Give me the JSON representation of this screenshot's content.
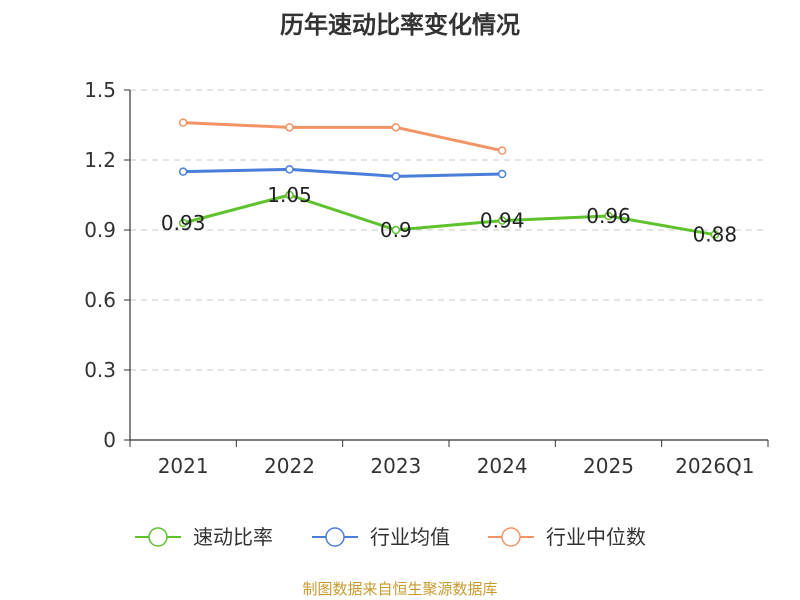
{
  "chart_data": {
    "type": "line",
    "title": "历年速动比率变化情况",
    "categories": [
      "2021",
      "2022",
      "2023",
      "2024",
      "2025",
      "2026Q1"
    ],
    "y_ticks": [
      "0",
      "0.3",
      "0.6",
      "0.9",
      "1.2",
      "1.5"
    ],
    "ylim": [
      0,
      1.5
    ],
    "grid": true,
    "legend_position": "bottom",
    "series": [
      {
        "name": "速动比率",
        "color": "#5ec22d",
        "values": [
          0.93,
          1.05,
          0.9,
          0.94,
          0.96,
          0.88
        ],
        "labels": [
          "0.93",
          "1.05",
          "0.9",
          "0.94",
          "0.96",
          "0.88"
        ]
      },
      {
        "name": "行业均值",
        "color": "#4a7fd9",
        "values": [
          1.15,
          1.16,
          1.13,
          1.14,
          null,
          null
        ]
      },
      {
        "name": "行业中位数",
        "color": "#f29466",
        "values": [
          1.36,
          1.34,
          1.34,
          1.24,
          null,
          null
        ]
      }
    ],
    "source": "制图数据来自恒生聚源数据库"
  }
}
